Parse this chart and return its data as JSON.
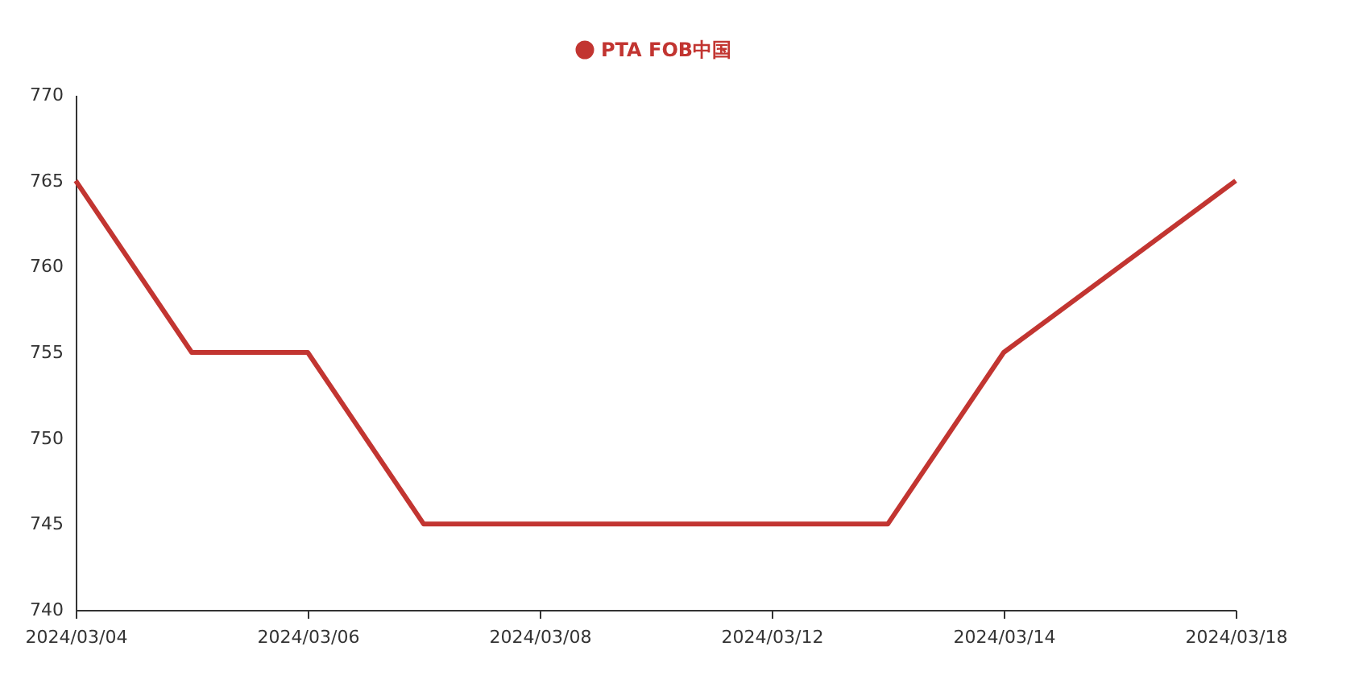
{
  "chart_data": {
    "type": "line",
    "categories": [
      "2024/03/04",
      null,
      "2024/03/06",
      null,
      "2024/03/08",
      null,
      "2024/03/12",
      null,
      "2024/03/14",
      null,
      "2024/03/18"
    ],
    "series": [
      {
        "name": "PTA FOB中国",
        "color": "#c23531",
        "values": [
          765,
          755,
          755,
          745,
          745,
          745,
          745,
          745,
          755,
          760,
          765
        ]
      }
    ],
    "ylim": [
      740,
      770
    ],
    "yticks": [
      740,
      745,
      750,
      755,
      760,
      765,
      770
    ],
    "grid": false,
    "legend": "top",
    "marker": "none",
    "line_style": "solid"
  }
}
